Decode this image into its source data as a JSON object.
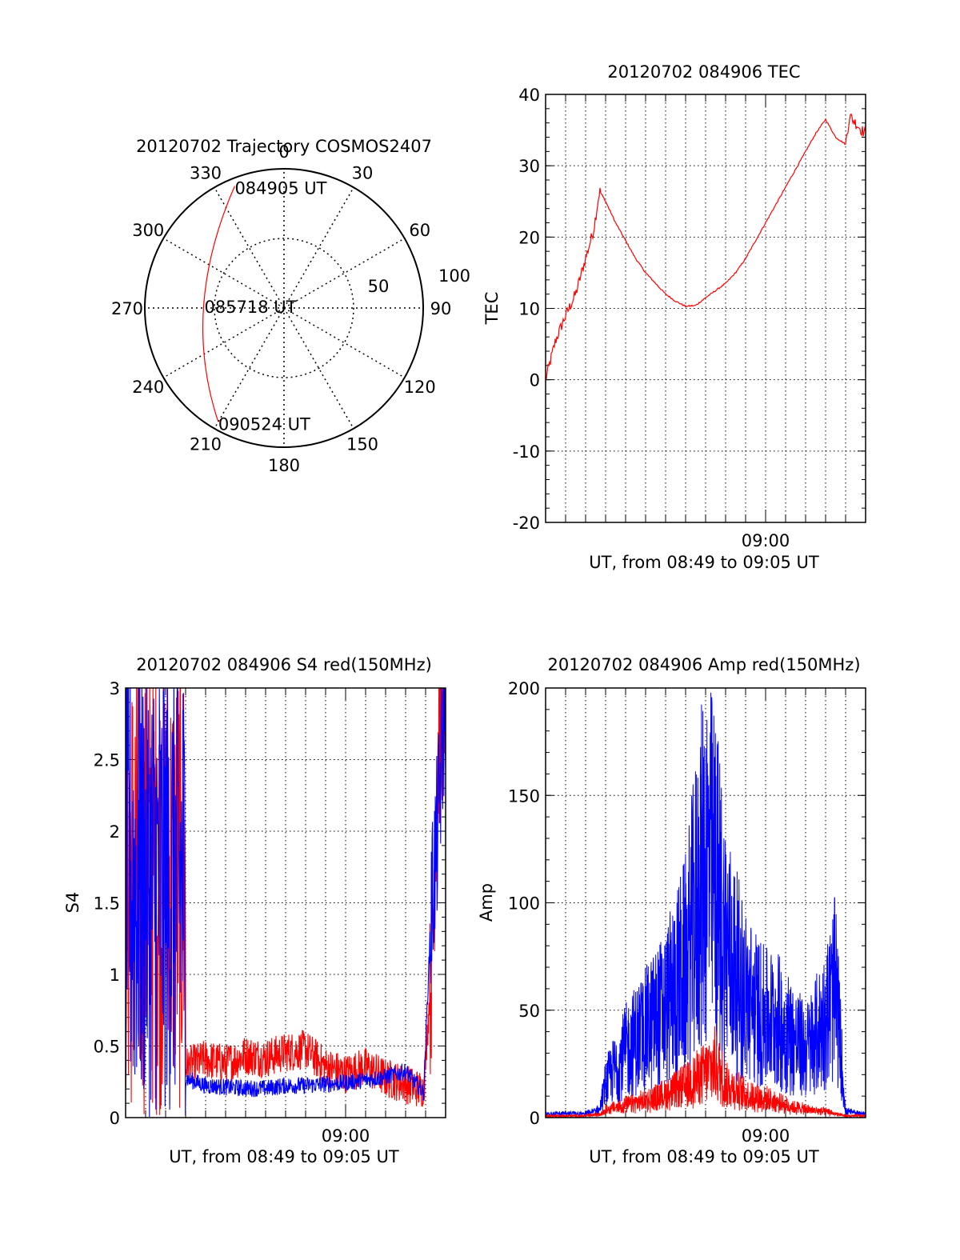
{
  "colors": {
    "red": "#ff0000",
    "blue": "#0000ff",
    "axis": "#000000",
    "grid": "#000000"
  },
  "chart_data": [
    {
      "type": "polar",
      "title": "20120702 Trajectory COSMOS2407",
      "azimuth_labels": [
        "0",
        "30",
        "60",
        "90",
        "120",
        "150",
        "180",
        "210",
        "240",
        "270",
        "300",
        "330"
      ],
      "radial_labels": [
        "50",
        "100"
      ],
      "r_max": 90,
      "points": [
        {
          "time": "084905 UT",
          "az": 338,
          "r": 85
        },
        {
          "time": "085718 UT",
          "az": 271,
          "r": 52
        },
        {
          "time": "090524 UT",
          "az": 210,
          "r": 85
        }
      ]
    },
    {
      "type": "line",
      "title": "20120702 084906 TEC",
      "xlabel": "UT, from 08:49 to 09:05 UT",
      "ylabel": "TEC",
      "xtick_labels": [
        "09:00"
      ],
      "xlim": [
        0,
        16
      ],
      "ylim": [
        -20,
        40
      ],
      "yticks": [
        -20,
        -10,
        0,
        10,
        20,
        30,
        40
      ],
      "grid": true,
      "series": [
        {
          "color": "red",
          "x": [
            0,
            0.5,
            1.0,
            1.5,
            2.0,
            2.4,
            2.7,
            3.0,
            3.5,
            4.0,
            4.5,
            5.0,
            5.5,
            6.0,
            6.5,
            7.0,
            7.5,
            8.0,
            8.5,
            9.0,
            9.5,
            10.0,
            10.5,
            11.0,
            11.5,
            12.0,
            12.5,
            13.0,
            13.5,
            14.0,
            14.5,
            15.0,
            15.2,
            15.5,
            15.8,
            16.0
          ],
          "y": [
            0,
            5.5,
            9,
            12,
            17,
            21,
            26.5,
            25,
            22,
            19.5,
            17,
            15,
            13.5,
            12,
            11,
            10.3,
            10.4,
            11.5,
            12.5,
            13.5,
            15,
            17,
            19.5,
            22,
            24.5,
            27,
            29.5,
            32,
            34.5,
            36.5,
            34,
            33,
            37,
            36,
            35,
            34.5
          ]
        }
      ]
    },
    {
      "type": "line",
      "title": "20120702 084906 S4 red(150MHz)",
      "xlabel": "UT, from 08:49 to 09:05 UT",
      "ylabel": "S4",
      "xtick_labels": [
        "09:00"
      ],
      "xlim": [
        0,
        16
      ],
      "ylim": [
        0,
        3
      ],
      "yticks": [
        0,
        0.5,
        1,
        1.5,
        2,
        2.5,
        3
      ],
      "grid": true,
      "series": [
        {
          "color": "red",
          "x": [
            0.2,
            1,
            2,
            3,
            4,
            5,
            6,
            7,
            8,
            9,
            10,
            11,
            12,
            13,
            14,
            14.9,
            15.3,
            15.6,
            16
          ],
          "y": [
            3.0,
            2.2,
            2.5,
            0.3,
            0.35,
            0.32,
            0.38,
            0.36,
            0.4,
            0.42,
            0.3,
            0.25,
            0.3,
            0.22,
            0.18,
            0.13,
            1.0,
            2.5,
            3.0
          ]
        },
        {
          "color": "blue",
          "x": [
            0.2,
            1,
            2,
            2.5,
            3,
            4,
            5,
            6,
            7,
            8,
            9,
            10,
            11,
            12,
            13,
            14,
            14.9,
            15.3,
            15.6,
            16
          ],
          "y": [
            3.0,
            2.8,
            2.9,
            1.5,
            0.25,
            0.2,
            0.19,
            0.18,
            0.18,
            0.2,
            0.2,
            0.21,
            0.22,
            0.24,
            0.26,
            0.3,
            0.15,
            1.5,
            2.0,
            3.0
          ]
        }
      ]
    },
    {
      "type": "line",
      "title": "20120702 084906 Amp red(150MHz)",
      "xlabel": "UT, from 08:49 to 09:05 UT",
      "ylabel": "Amp",
      "xtick_labels": [
        "09:00"
      ],
      "xlim": [
        0,
        16
      ],
      "ylim": [
        0,
        200
      ],
      "yticks": [
        0,
        50,
        100,
        150,
        200
      ],
      "grid": true,
      "series": [
        {
          "color": "blue",
          "x": [
            0,
            1,
            2,
            2.7,
            3,
            4,
            5,
            6,
            7,
            7.5,
            8,
            8.5,
            9,
            10,
            11,
            11.5,
            12,
            13,
            14,
            14.5,
            15,
            16
          ],
          "y": [
            1,
            1,
            1,
            3,
            15,
            30,
            40,
            50,
            70,
            95,
            120,
            110,
            80,
            55,
            45,
            45,
            40,
            30,
            45,
            60,
            2,
            1
          ]
        },
        {
          "color": "red",
          "x": [
            0,
            2,
            2.8,
            3,
            4,
            5,
            6,
            7,
            8,
            8.5,
            9,
            10,
            11,
            12,
            13,
            14,
            15,
            16
          ],
          "y": [
            0,
            0,
            1,
            3,
            5,
            7,
            10,
            14,
            20,
            24,
            15,
            10,
            8,
            5,
            3,
            2,
            0,
            0
          ]
        }
      ]
    }
  ]
}
